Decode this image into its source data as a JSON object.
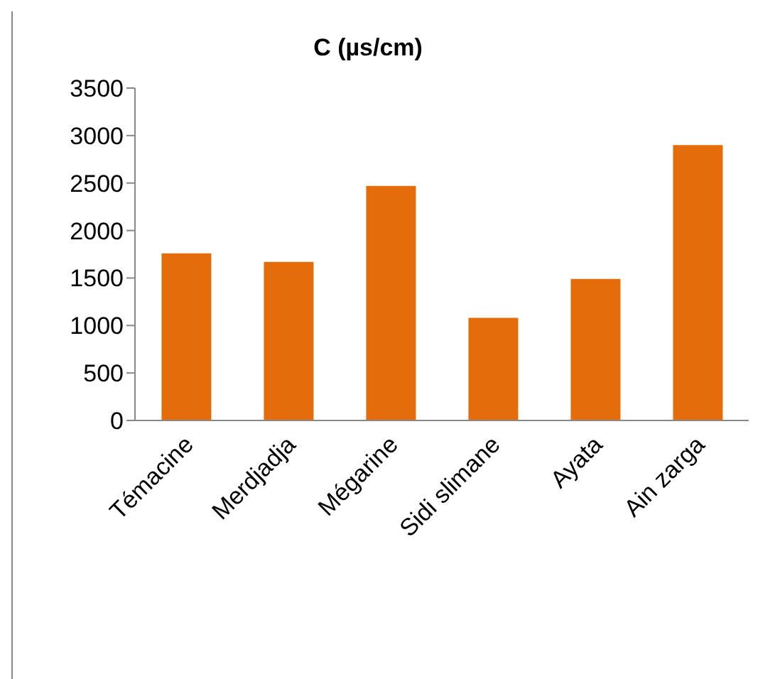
{
  "chart_data": {
    "type": "bar",
    "title": "C (µs/cm)",
    "categories": [
      "Témacine",
      "Merdjadja",
      "Mégarine",
      "Sidi slimane",
      "Ayata",
      "Ain zarga"
    ],
    "values": [
      1760,
      1670,
      2470,
      1080,
      1490,
      2900
    ],
    "color": "#e46c0a",
    "ylim": [
      0,
      3500
    ],
    "yticks": [
      0,
      500,
      1000,
      1500,
      2000,
      2500,
      3000,
      3500
    ],
    "grid": false,
    "legend": false
  }
}
